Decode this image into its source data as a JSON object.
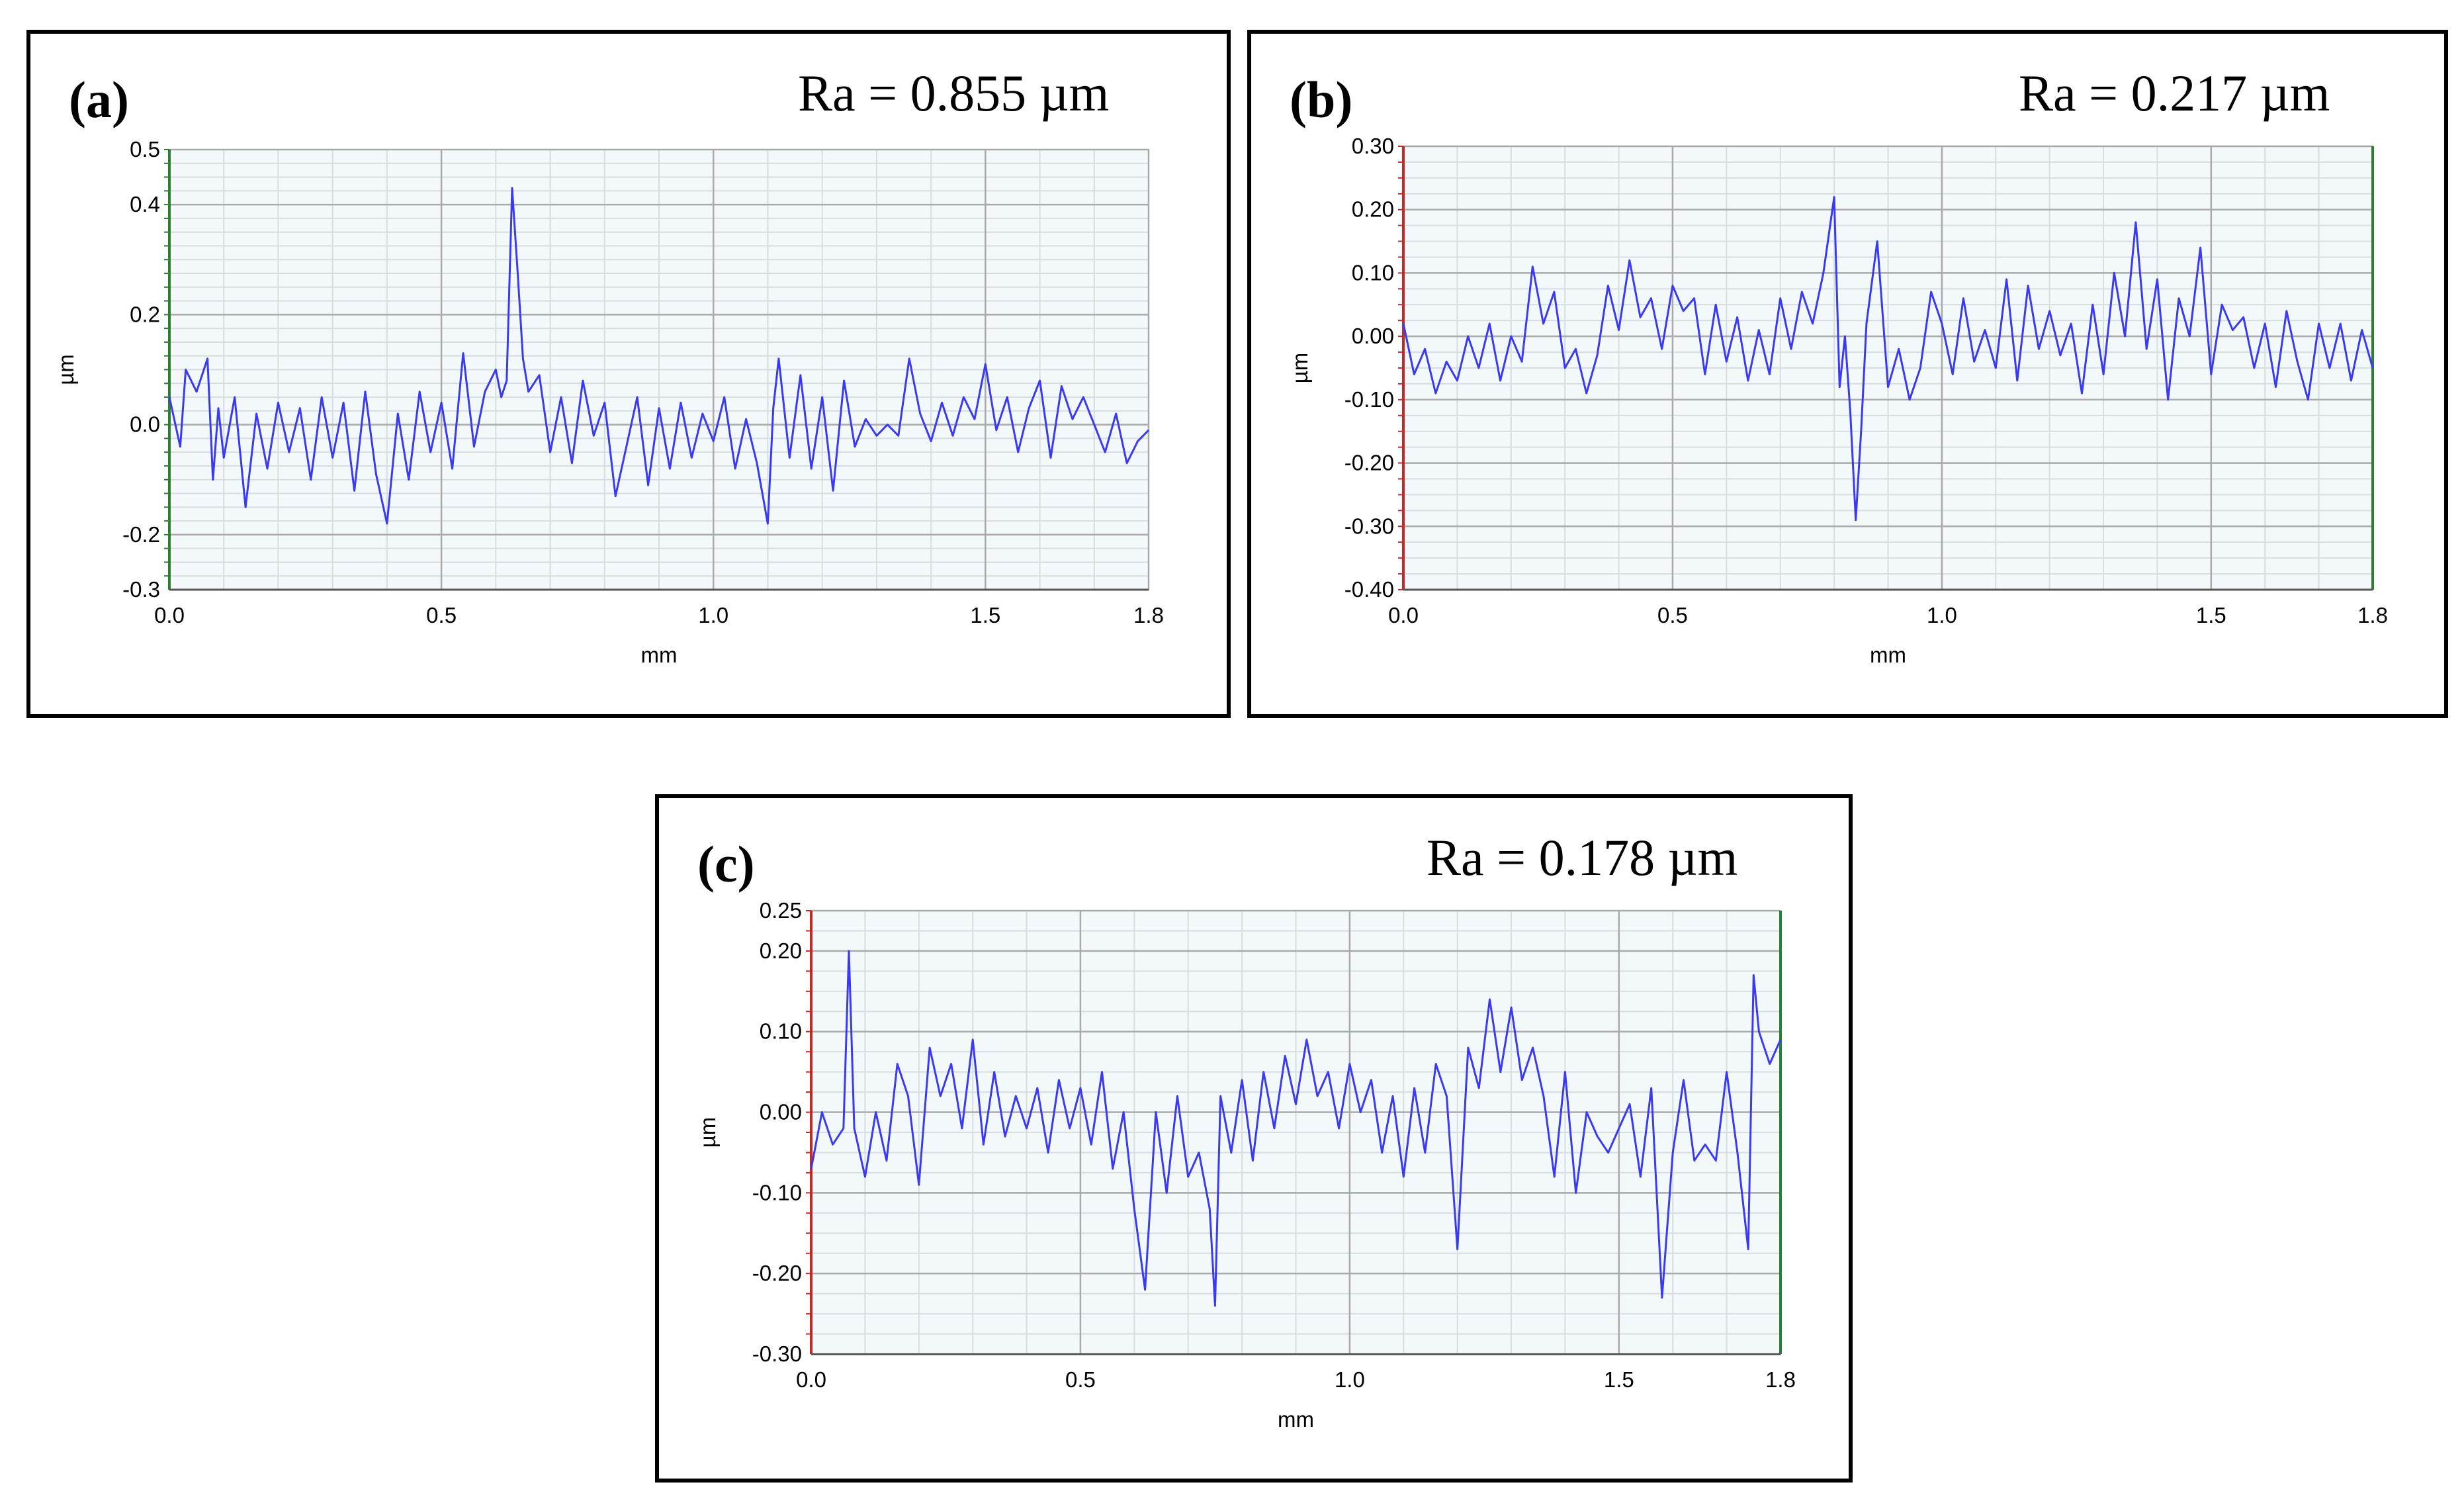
{
  "chart_data": [
    {
      "type": "line",
      "panel_label": "(a)",
      "annotation": "Ra = 0.855 µm",
      "xlabel": "mm",
      "ylabel": "µm",
      "xlim": [
        0.0,
        1.8
      ],
      "ylim": [
        -0.3,
        0.5
      ],
      "x_ticks": [
        "0.0",
        "0.5",
        "1.0",
        "1.5",
        "1.8"
      ],
      "y_ticks": [
        {
          "value": 0.5,
          "label": "0.5"
        },
        {
          "value": 0.4,
          "label": "0.4"
        },
        {
          "value": 0.2,
          "label": "0.2"
        },
        {
          "value": 0.0,
          "label": "0.0"
        },
        {
          "value": -0.2,
          "label": "-0.2"
        },
        {
          "value": -0.3,
          "label": "-0.3"
        }
      ],
      "grid": true,
      "line_color": "#3a3af5",
      "left_axis_color": "#2e7d32",
      "series": [
        {
          "x": [
            0.0,
            0.02,
            0.03,
            0.05,
            0.07,
            0.08,
            0.09,
            0.1,
            0.12,
            0.14,
            0.16,
            0.18,
            0.2,
            0.22,
            0.24,
            0.26,
            0.28,
            0.3,
            0.32,
            0.34,
            0.36,
            0.38,
            0.4,
            0.42,
            0.44,
            0.46,
            0.48,
            0.5,
            0.52,
            0.54,
            0.56,
            0.58,
            0.6,
            0.61,
            0.62,
            0.63,
            0.64,
            0.65,
            0.66,
            0.68,
            0.7,
            0.72,
            0.74,
            0.76,
            0.78,
            0.8,
            0.82,
            0.84,
            0.86,
            0.88,
            0.9,
            0.92,
            0.94,
            0.96,
            0.98,
            1.0,
            1.02,
            1.04,
            1.06,
            1.08,
            1.1,
            1.11,
            1.12,
            1.14,
            1.16,
            1.18,
            1.2,
            1.22,
            1.24,
            1.26,
            1.28,
            1.3,
            1.32,
            1.34,
            1.36,
            1.38,
            1.4,
            1.42,
            1.44,
            1.46,
            1.48,
            1.5,
            1.52,
            1.54,
            1.56,
            1.58,
            1.6,
            1.62,
            1.64,
            1.66,
            1.68,
            1.7,
            1.72,
            1.74,
            1.76,
            1.78,
            1.8
          ],
          "y": [
            0.05,
            -0.04,
            0.1,
            0.06,
            0.12,
            -0.1,
            0.03,
            -0.06,
            0.05,
            -0.15,
            0.02,
            -0.08,
            0.04,
            -0.05,
            0.03,
            -0.1,
            0.05,
            -0.06,
            0.04,
            -0.12,
            0.06,
            -0.09,
            -0.18,
            0.02,
            -0.1,
            0.06,
            -0.05,
            0.04,
            -0.08,
            0.13,
            -0.04,
            0.06,
            0.1,
            0.05,
            0.08,
            0.43,
            0.28,
            0.12,
            0.06,
            0.09,
            -0.05,
            0.05,
            -0.07,
            0.08,
            -0.02,
            0.04,
            -0.13,
            -0.04,
            0.05,
            -0.11,
            0.03,
            -0.08,
            0.04,
            -0.06,
            0.02,
            -0.03,
            0.05,
            -0.08,
            0.01,
            -0.07,
            -0.18,
            0.03,
            0.12,
            -0.06,
            0.09,
            -0.08,
            0.05,
            -0.12,
            0.08,
            -0.04,
            0.01,
            -0.02,
            0.0,
            -0.02,
            0.12,
            0.02,
            -0.03,
            0.04,
            -0.02,
            0.05,
            0.01,
            0.11,
            -0.01,
            0.05,
            -0.05,
            0.03,
            0.08,
            -0.06,
            0.07,
            0.01,
            0.05,
            0.0,
            -0.05,
            0.02,
            -0.07,
            -0.03,
            -0.01
          ]
        }
      ]
    },
    {
      "type": "line",
      "panel_label": "(b)",
      "annotation": "Ra = 0.217 µm",
      "xlabel": "mm",
      "ylabel": "µm",
      "xlim": [
        0.0,
        1.8
      ],
      "ylim": [
        -0.4,
        0.3
      ],
      "x_ticks": [
        "0.0",
        "0.5",
        "1.0",
        "1.5",
        "1.8"
      ],
      "y_ticks": [
        {
          "value": 0.3,
          "label": "0.30"
        },
        {
          "value": 0.2,
          "label": "0.20"
        },
        {
          "value": 0.1,
          "label": "0.10"
        },
        {
          "value": 0.0,
          "label": "0.00"
        },
        {
          "value": -0.1,
          "label": "-0.10"
        },
        {
          "value": -0.2,
          "label": "-0.20"
        },
        {
          "value": -0.3,
          "label": "-0.30"
        },
        {
          "value": -0.4,
          "label": "-0.40"
        }
      ],
      "grid": true,
      "line_color": "#3a3af5",
      "left_axis_color": "#c62828",
      "right_axis_color": "#2e7d32",
      "series": [
        {
          "x": [
            0.0,
            0.02,
            0.04,
            0.06,
            0.08,
            0.1,
            0.12,
            0.14,
            0.16,
            0.18,
            0.2,
            0.22,
            0.24,
            0.26,
            0.28,
            0.3,
            0.32,
            0.34,
            0.36,
            0.38,
            0.4,
            0.42,
            0.44,
            0.46,
            0.48,
            0.5,
            0.52,
            0.54,
            0.56,
            0.58,
            0.6,
            0.62,
            0.64,
            0.66,
            0.68,
            0.7,
            0.72,
            0.74,
            0.76,
            0.78,
            0.8,
            0.81,
            0.82,
            0.83,
            0.84,
            0.85,
            0.86,
            0.88,
            0.9,
            0.92,
            0.94,
            0.96,
            0.98,
            1.0,
            1.02,
            1.04,
            1.06,
            1.08,
            1.1,
            1.12,
            1.14,
            1.16,
            1.18,
            1.2,
            1.22,
            1.24,
            1.26,
            1.28,
            1.3,
            1.32,
            1.34,
            1.36,
            1.38,
            1.4,
            1.42,
            1.44,
            1.46,
            1.48,
            1.5,
            1.52,
            1.54,
            1.56,
            1.58,
            1.6,
            1.62,
            1.64,
            1.66,
            1.68,
            1.7,
            1.72,
            1.74,
            1.76,
            1.78,
            1.8
          ],
          "y": [
            0.02,
            -0.06,
            -0.02,
            -0.09,
            -0.04,
            -0.07,
            0.0,
            -0.05,
            0.02,
            -0.07,
            0.0,
            -0.04,
            0.11,
            0.02,
            0.07,
            -0.05,
            -0.02,
            -0.09,
            -0.03,
            0.08,
            0.01,
            0.12,
            0.03,
            0.06,
            -0.02,
            0.08,
            0.04,
            0.06,
            -0.06,
            0.05,
            -0.04,
            0.03,
            -0.07,
            0.01,
            -0.06,
            0.06,
            -0.02,
            0.07,
            0.02,
            0.1,
            0.22,
            -0.08,
            0.0,
            -0.12,
            -0.29,
            -0.15,
            0.02,
            0.15,
            -0.08,
            -0.02,
            -0.1,
            -0.05,
            0.07,
            0.02,
            -0.06,
            0.06,
            -0.04,
            0.01,
            -0.05,
            0.09,
            -0.07,
            0.08,
            -0.02,
            0.04,
            -0.03,
            0.02,
            -0.09,
            0.05,
            -0.06,
            0.1,
            0.0,
            0.18,
            -0.02,
            0.09,
            -0.1,
            0.06,
            0.0,
            0.14,
            -0.06,
            0.05,
            0.01,
            0.03,
            -0.05,
            0.02,
            -0.08,
            0.04,
            -0.04,
            -0.1,
            0.02,
            -0.05,
            0.02,
            -0.07,
            0.01,
            -0.05
          ]
        }
      ]
    },
    {
      "type": "line",
      "panel_label": "(c)",
      "annotation": "Ra = 0.178 µm",
      "xlabel": "mm",
      "ylabel": "µm",
      "xlim": [
        0.0,
        1.8
      ],
      "ylim": [
        -0.3,
        0.25
      ],
      "x_ticks": [
        "0.0",
        "0.5",
        "1.0",
        "1.5",
        "1.8"
      ],
      "y_ticks": [
        {
          "value": 0.25,
          "label": "0.25"
        },
        {
          "value": 0.2,
          "label": "0.20"
        },
        {
          "value": 0.1,
          "label": "0.10"
        },
        {
          "value": 0.0,
          "label": "0.00"
        },
        {
          "value": -0.1,
          "label": "-0.10"
        },
        {
          "value": -0.2,
          "label": "-0.20"
        },
        {
          "value": -0.3,
          "label": "-0.30"
        }
      ],
      "grid": true,
      "line_color": "#3a3af5",
      "left_axis_color": "#c62828",
      "right_axis_color": "#2e7d32",
      "series": [
        {
          "x": [
            0.0,
            0.02,
            0.04,
            0.06,
            0.07,
            0.08,
            0.1,
            0.12,
            0.14,
            0.16,
            0.18,
            0.2,
            0.22,
            0.24,
            0.26,
            0.28,
            0.3,
            0.32,
            0.34,
            0.36,
            0.38,
            0.4,
            0.42,
            0.44,
            0.46,
            0.48,
            0.5,
            0.52,
            0.54,
            0.56,
            0.58,
            0.6,
            0.62,
            0.64,
            0.66,
            0.68,
            0.7,
            0.72,
            0.74,
            0.75,
            0.76,
            0.78,
            0.8,
            0.82,
            0.84,
            0.86,
            0.88,
            0.9,
            0.92,
            0.94,
            0.96,
            0.98,
            1.0,
            1.02,
            1.04,
            1.06,
            1.08,
            1.1,
            1.12,
            1.14,
            1.16,
            1.18,
            1.2,
            1.22,
            1.24,
            1.26,
            1.28,
            1.3,
            1.32,
            1.34,
            1.36,
            1.38,
            1.4,
            1.42,
            1.44,
            1.46,
            1.48,
            1.5,
            1.52,
            1.54,
            1.56,
            1.58,
            1.6,
            1.62,
            1.64,
            1.66,
            1.68,
            1.7,
            1.72,
            1.74,
            1.75,
            1.76,
            1.78,
            1.8
          ],
          "y": [
            -0.07,
            0.0,
            -0.04,
            -0.02,
            0.2,
            -0.02,
            -0.08,
            0.0,
            -0.06,
            0.06,
            0.02,
            -0.09,
            0.08,
            0.02,
            0.06,
            -0.02,
            0.09,
            -0.04,
            0.05,
            -0.03,
            0.02,
            -0.02,
            0.03,
            -0.05,
            0.04,
            -0.02,
            0.03,
            -0.04,
            0.05,
            -0.07,
            0.0,
            -0.12,
            -0.22,
            0.0,
            -0.1,
            0.02,
            -0.08,
            -0.05,
            -0.12,
            -0.24,
            0.02,
            -0.05,
            0.04,
            -0.06,
            0.05,
            -0.02,
            0.07,
            0.01,
            0.09,
            0.02,
            0.05,
            -0.02,
            0.06,
            0.0,
            0.04,
            -0.05,
            0.02,
            -0.08,
            0.03,
            -0.05,
            0.06,
            0.02,
            -0.17,
            0.08,
            0.03,
            0.14,
            0.05,
            0.13,
            0.04,
            0.08,
            0.02,
            -0.08,
            0.05,
            -0.1,
            0.0,
            -0.03,
            -0.05,
            -0.02,
            0.01,
            -0.08,
            0.03,
            -0.23,
            -0.05,
            0.04,
            -0.06,
            -0.04,
            -0.06,
            0.05,
            -0.05,
            -0.17,
            0.17,
            0.1,
            0.06,
            0.09
          ]
        }
      ]
    }
  ]
}
